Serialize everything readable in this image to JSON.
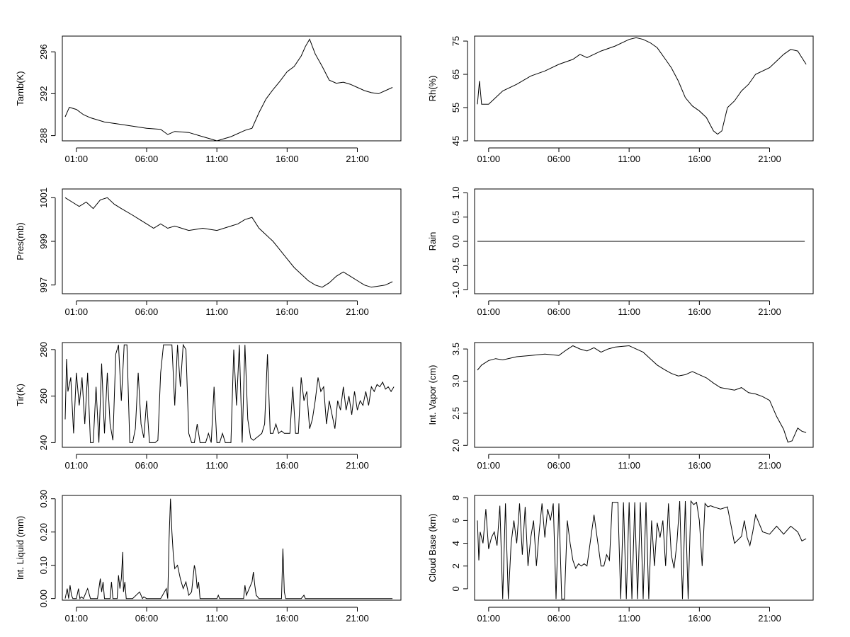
{
  "chart_data": [
    {
      "id": "tamb",
      "type": "line",
      "ylabel": "Tamb(K)",
      "xlabel": "",
      "x_ticks": [
        "01:00",
        "06:00",
        "11:00",
        "16:00",
        "21:00"
      ],
      "x_tick_hours": [
        1,
        6,
        11,
        16,
        21
      ],
      "xlim_hours": [
        0,
        24.1
      ],
      "y_ticks": [
        "288",
        "292",
        "296"
      ],
      "y_tick_values": [
        288,
        292,
        296
      ],
      "ylim": [
        287.5,
        297.5
      ],
      "x_hours": [
        0.2,
        0.5,
        1.0,
        1.5,
        2,
        3,
        4,
        5,
        6,
        7,
        7.5,
        8,
        9,
        10,
        10.5,
        11,
        12,
        13,
        13.5,
        14,
        14.5,
        15,
        15.5,
        16,
        16.5,
        17,
        17.3,
        17.6,
        18,
        18.5,
        19,
        19.5,
        20,
        20.5,
        21,
        21.5,
        22,
        22.5,
        23,
        23.5
      ],
      "values": [
        289.8,
        290.7,
        290.5,
        290.0,
        289.7,
        289.3,
        289.1,
        288.9,
        288.7,
        288.6,
        288.1,
        288.4,
        288.3,
        287.9,
        287.7,
        287.5,
        287.9,
        288.5,
        288.7,
        290.2,
        291.5,
        292.4,
        293.2,
        294.1,
        294.6,
        295.6,
        296.5,
        297.2,
        295.8,
        294.6,
        293.3,
        293.0,
        293.1,
        292.9,
        292.6,
        292.3,
        292.1,
        292.0,
        292.3,
        292.6
      ]
    },
    {
      "id": "rh",
      "type": "line",
      "ylabel": "Rh(%)",
      "xlabel": "",
      "x_ticks": [
        "01:00",
        "06:00",
        "11:00",
        "16:00",
        "21:00"
      ],
      "x_tick_hours": [
        1,
        6,
        11,
        16,
        21
      ],
      "xlim_hours": [
        0,
        24.1
      ],
      "y_ticks": [
        "45",
        "55",
        "65",
        "75"
      ],
      "y_tick_values": [
        45,
        55,
        65,
        75
      ],
      "ylim": [
        45,
        76.5
      ],
      "x_hours": [
        0.2,
        0.35,
        0.5,
        1.0,
        1.5,
        2,
        3,
        4,
        5,
        6,
        7,
        7.5,
        8,
        9,
        10,
        11,
        11.5,
        12,
        12.5,
        13,
        13.5,
        14,
        14.5,
        15,
        15.5,
        16,
        16.5,
        17,
        17.3,
        17.6,
        18,
        18.5,
        19,
        19.5,
        20,
        21,
        21.5,
        22,
        22.5,
        23,
        23.3,
        23.6
      ],
      "values": [
        56,
        63,
        56,
        56,
        58,
        60,
        62,
        64.5,
        66,
        68,
        69.5,
        71,
        70,
        72,
        73.5,
        75.5,
        76,
        75.5,
        74.5,
        73,
        70,
        67,
        63,
        58,
        55.5,
        54,
        52,
        48,
        47,
        48,
        55,
        57,
        60,
        62,
        65,
        67,
        69,
        71,
        72.5,
        72,
        70,
        68
      ]
    },
    {
      "id": "pres",
      "type": "line",
      "ylabel": "Pres(mb)",
      "xlabel": "",
      "x_ticks": [
        "01:00",
        "06:00",
        "11:00",
        "16:00",
        "21:00"
      ],
      "x_tick_hours": [
        1,
        6,
        11,
        16,
        21
      ],
      "xlim_hours": [
        0,
        24.1
      ],
      "y_ticks": [
        "997",
        "999",
        "1001"
      ],
      "y_tick_values": [
        997,
        999,
        1001
      ],
      "ylim": [
        996.6,
        1001.4
      ],
      "x_hours": [
        0.2,
        0.7,
        1.2,
        1.7,
        2.2,
        2.7,
        3.2,
        3.7,
        4.2,
        5,
        5.5,
        6,
        6.5,
        7,
        7.5,
        8,
        9,
        10,
        11,
        12,
        12.5,
        13,
        13.5,
        14,
        14.5,
        15,
        15.5,
        16,
        16.5,
        17,
        17.5,
        18,
        18.5,
        19,
        19.5,
        20,
        20.5,
        21,
        21.5,
        22,
        22.5,
        23,
        23.5
      ],
      "values": [
        1001,
        1000.8,
        1000.6,
        1000.8,
        1000.5,
        1000.9,
        1001.0,
        1000.7,
        1000.5,
        1000.2,
        1000.0,
        999.8,
        999.6,
        999.8,
        999.6,
        999.7,
        999.5,
        999.6,
        999.5,
        999.7,
        999.8,
        1000.0,
        1000.1,
        999.6,
        999.3,
        999.0,
        998.6,
        998.2,
        997.8,
        997.5,
        997.2,
        997.0,
        996.9,
        997.1,
        997.4,
        997.6,
        997.4,
        997.2,
        997.0,
        996.9,
        996.95,
        997.0,
        997.15
      ]
    },
    {
      "id": "rain",
      "type": "line",
      "ylabel": "Rain",
      "xlabel": "",
      "x_ticks": [
        "01:00",
        "06:00",
        "11:00",
        "16:00",
        "21:00"
      ],
      "x_tick_hours": [
        1,
        6,
        11,
        16,
        21
      ],
      "xlim_hours": [
        0,
        24.1
      ],
      "y_ticks": [
        "-1.0",
        "-0.5",
        "0.0",
        "0.5",
        "1.0"
      ],
      "y_tick_values": [
        -1.0,
        -0.5,
        0.0,
        0.5,
        1.0
      ],
      "ylim": [
        -1.08,
        1.08
      ],
      "x_hours": [
        0.2,
        23.5
      ],
      "values": [
        0.0,
        0.0
      ]
    },
    {
      "id": "tir",
      "type": "line",
      "ylabel": "Tir(K)",
      "xlabel": "",
      "x_ticks": [
        "01:00",
        "06:00",
        "11:00",
        "16:00",
        "21:00"
      ],
      "x_tick_hours": [
        1,
        6,
        11,
        16,
        21
      ],
      "xlim_hours": [
        0,
        24.1
      ],
      "y_ticks": [
        "240",
        "260",
        "280"
      ],
      "y_tick_values": [
        240,
        260,
        280
      ],
      "ylim": [
        238,
        283
      ],
      "x_hours": [
        0.2,
        0.3,
        0.4,
        0.6,
        0.8,
        1.0,
        1.2,
        1.4,
        1.6,
        1.8,
        2.0,
        2.2,
        2.4,
        2.6,
        2.8,
        3.0,
        3.2,
        3.4,
        3.6,
        3.8,
        4.0,
        4.2,
        4.4,
        4.6,
        4.8,
        5.0,
        5.2,
        5.4,
        5.6,
        5.8,
        6.0,
        6.2,
        6.4,
        6.6,
        6.8,
        7.0,
        7.2,
        7.4,
        7.6,
        7.8,
        8.0,
        8.2,
        8.4,
        8.6,
        8.8,
        9.0,
        9.2,
        9.4,
        9.6,
        9.8,
        10.0,
        10.2,
        10.4,
        10.6,
        10.8,
        11.0,
        11.2,
        11.4,
        11.6,
        11.8,
        12.0,
        12.2,
        12.4,
        12.6,
        12.8,
        13.0,
        13.2,
        13.4,
        13.6,
        13.8,
        14.0,
        14.2,
        14.4,
        14.6,
        14.8,
        15.0,
        15.2,
        15.4,
        15.6,
        15.8,
        16.0,
        16.2,
        16.4,
        16.6,
        16.8,
        17.0,
        17.2,
        17.4,
        17.6,
        17.8,
        18.0,
        18.2,
        18.4,
        18.6,
        18.8,
        19.0,
        19.2,
        19.4,
        19.6,
        19.8,
        20.0,
        20.2,
        20.4,
        20.6,
        20.8,
        21.0,
        21.2,
        21.4,
        21.6,
        21.8,
        22.0,
        22.2,
        22.4,
        22.6,
        22.8,
        23.0,
        23.2,
        23.4,
        23.6
      ],
      "values": [
        250,
        276,
        262,
        268,
        244,
        270,
        256,
        268,
        248,
        270,
        240,
        240,
        264,
        240,
        274,
        244,
        270,
        248,
        241,
        278,
        282,
        258,
        282,
        282,
        240,
        240,
        246,
        270,
        248,
        242,
        258,
        240,
        240,
        240,
        241,
        270,
        282,
        282,
        282,
        282,
        256,
        282,
        264,
        282,
        280,
        244,
        240,
        240,
        248,
        240,
        240,
        240,
        244,
        240,
        264,
        240,
        240,
        244,
        240,
        240,
        240,
        280,
        256,
        282,
        240,
        282,
        250,
        242,
        241,
        242,
        243,
        244,
        248,
        278,
        244,
        244,
        248,
        244,
        245,
        244,
        244,
        244,
        264,
        244,
        244,
        268,
        258,
        262,
        246,
        250,
        258,
        268,
        262,
        264,
        248,
        258,
        252,
        246,
        258,
        254,
        264,
        254,
        260,
        252,
        262,
        254,
        258,
        256,
        262,
        256,
        264,
        262,
        265,
        264,
        266,
        263,
        264,
        262,
        264
      ]
    },
    {
      "id": "vapor",
      "type": "line",
      "ylabel": "Int. Vapor (cm)",
      "xlabel": "",
      "x_ticks": [
        "01:00",
        "06:00",
        "11:00",
        "16:00",
        "21:00"
      ],
      "x_tick_hours": [
        1,
        6,
        11,
        16,
        21
      ],
      "xlim_hours": [
        0,
        24.1
      ],
      "y_ticks": [
        "2.0",
        "2.5",
        "3.0",
        "3.5"
      ],
      "y_tick_values": [
        2.0,
        2.5,
        3.0,
        3.5
      ],
      "ylim": [
        1.97,
        3.6
      ],
      "x_hours": [
        0.2,
        0.5,
        1.0,
        1.5,
        2,
        3,
        4,
        5,
        6,
        6.5,
        7,
        7.5,
        8,
        8.5,
        9,
        9.5,
        10,
        10.5,
        11,
        11.5,
        12,
        12.5,
        13,
        13.5,
        14,
        14.5,
        15,
        15.5,
        16,
        16.5,
        17,
        17.5,
        18,
        18.5,
        19,
        19.5,
        20,
        20.5,
        21,
        21.5,
        22,
        22.3,
        22.6,
        23,
        23.3,
        23.6
      ],
      "values": [
        3.17,
        3.25,
        3.32,
        3.35,
        3.33,
        3.38,
        3.4,
        3.42,
        3.4,
        3.48,
        3.55,
        3.5,
        3.47,
        3.52,
        3.45,
        3.5,
        3.53,
        3.54,
        3.55,
        3.5,
        3.45,
        3.35,
        3.25,
        3.18,
        3.12,
        3.08,
        3.1,
        3.15,
        3.1,
        3.05,
        2.97,
        2.9,
        2.88,
        2.86,
        2.9,
        2.82,
        2.8,
        2.76,
        2.7,
        2.45,
        2.25,
        2.05,
        2.07,
        2.27,
        2.22,
        2.2
      ]
    },
    {
      "id": "liquid",
      "type": "line",
      "ylabel": "Int. Liquid (mm)",
      "xlabel": "",
      "x_ticks": [
        "01:00",
        "06:00",
        "11:00",
        "16:00",
        "21:00"
      ],
      "x_tick_hours": [
        1,
        6,
        11,
        16,
        21
      ],
      "xlim_hours": [
        0,
        24.1
      ],
      "y_ticks": [
        "0.00",
        "0.10",
        "0.20",
        "0.30"
      ],
      "y_tick_values": [
        0.0,
        0.1,
        0.2,
        0.3
      ],
      "ylim": [
        -0.005,
        0.31
      ],
      "x_hours": [
        0.2,
        0.35,
        0.45,
        0.55,
        0.65,
        0.75,
        1.0,
        1.15,
        1.25,
        1.35,
        1.5,
        1.8,
        2.0,
        2.5,
        2.7,
        2.8,
        2.9,
        3.0,
        3.4,
        3.5,
        3.6,
        3.9,
        4.0,
        4.1,
        4.2,
        4.3,
        4.35,
        4.45,
        4.55,
        4.7,
        5.0,
        5.5,
        5.7,
        5.8,
        6.0,
        7.0,
        7.4,
        7.5,
        7.6,
        7.7,
        7.8,
        7.9,
        8.0,
        8.2,
        8.4,
        8.6,
        8.8,
        9.0,
        9.2,
        9.4,
        9.5,
        9.6,
        9.7,
        9.8,
        10.0,
        10.5,
        11.0,
        11.1,
        11.2,
        11.5,
        12.0,
        12.5,
        12.9,
        13.0,
        13.1,
        13.3,
        13.5,
        13.6,
        13.7,
        13.8,
        14.0,
        14.5,
        15.0,
        15.6,
        15.7,
        15.8,
        15.9,
        16.0,
        16.5,
        17.0,
        17.2,
        17.3,
        17.5,
        18,
        23.5
      ],
      "values": [
        0,
        0.03,
        0,
        0.04,
        0.01,
        0,
        0,
        0.03,
        0,
        0.005,
        0,
        0.03,
        0,
        0,
        0.06,
        0.02,
        0.05,
        0,
        0,
        0.05,
        0,
        0,
        0.07,
        0.03,
        0.06,
        0.14,
        0.02,
        0.05,
        0,
        0,
        0,
        0.02,
        0,
        0.005,
        0,
        0,
        0.03,
        0,
        0.18,
        0.3,
        0.2,
        0.13,
        0.09,
        0.1,
        0.06,
        0.03,
        0.05,
        0.01,
        0.02,
        0.1,
        0.08,
        0.03,
        0.05,
        0,
        0,
        0,
        0,
        0.01,
        0,
        0,
        0,
        0,
        0,
        0.04,
        0.01,
        0.03,
        0.05,
        0.08,
        0.04,
        0.01,
        0,
        0,
        0,
        0,
        0.15,
        0.02,
        0,
        0,
        0,
        0,
        0.01,
        0,
        0,
        0,
        0
      ]
    },
    {
      "id": "cloudbase",
      "type": "line",
      "ylabel": "Cloud Base (km)",
      "xlabel": "",
      "x_ticks": [
        "01:00",
        "06:00",
        "11:00",
        "16:00",
        "21:00"
      ],
      "x_tick_hours": [
        1,
        6,
        11,
        16,
        21
      ],
      "xlim_hours": [
        0,
        24.1
      ],
      "y_ticks": [
        "0",
        "2",
        "4",
        "6",
        "8"
      ],
      "y_tick_values": [
        0,
        2,
        4,
        6,
        8
      ],
      "ylim": [
        -1,
        8.2
      ],
      "x_hours": [
        0.2,
        0.3,
        0.4,
        0.6,
        0.8,
        1.0,
        1.2,
        1.4,
        1.6,
        1.8,
        2.0,
        2.2,
        2.4,
        2.6,
        2.8,
        3.0,
        3.2,
        3.4,
        3.6,
        3.8,
        4.0,
        4.2,
        4.4,
        4.6,
        4.8,
        5.0,
        5.2,
        5.4,
        5.6,
        5.8,
        6.0,
        6.2,
        6.4,
        6.6,
        6.8,
        7.0,
        7.2,
        7.4,
        7.6,
        7.8,
        8.0,
        8.5,
        9.0,
        9.2,
        9.4,
        9.6,
        9.8,
        10.0,
        10.2,
        10.4,
        10.6,
        10.8,
        11.0,
        11.2,
        11.4,
        11.6,
        11.8,
        12.0,
        12.2,
        12.4,
        12.6,
        12.8,
        13.0,
        13.2,
        13.4,
        13.6,
        13.8,
        14.0,
        14.2,
        14.4,
        14.6,
        14.8,
        15.0,
        15.2,
        15.4,
        15.6,
        15.8,
        16.0,
        16.2,
        16.4,
        16.6,
        16.8,
        17.0,
        17.5,
        18.0,
        18.5,
        19.0,
        19.2,
        19.4,
        19.6,
        19.8,
        20.0,
        20.5,
        21.0,
        21.5,
        22.0,
        22.5,
        23.0,
        23.3,
        23.6
      ],
      "values": [
        6,
        2.5,
        5,
        4,
        7,
        3.5,
        4.5,
        5,
        3.8,
        7.3,
        -0.9,
        7.5,
        -0.9,
        4,
        6,
        4,
        7.5,
        3,
        7.2,
        2,
        4.5,
        6,
        2,
        5,
        7.5,
        4.5,
        7,
        6,
        7.5,
        -0.9,
        7.5,
        -0.9,
        -0.9,
        6,
        4,
        2.5,
        1.8,
        2.2,
        2,
        2.2,
        2,
        6.5,
        2,
        2,
        3,
        2.5,
        7.6,
        7.6,
        7.6,
        -0.9,
        7.6,
        -0.9,
        7.6,
        -0.9,
        7.6,
        -0.9,
        7.6,
        -0.9,
        7.6,
        -0.9,
        6,
        2,
        5.8,
        4.5,
        6,
        2,
        7.5,
        3,
        1.8,
        4,
        7.7,
        -0.9,
        7.7,
        -0.9,
        7.7,
        7.4,
        7.6,
        6,
        2,
        7.5,
        7.2,
        7.3,
        7.2,
        7.0,
        7.2,
        4,
        4.6,
        6,
        4.5,
        3.8,
        5,
        6.5,
        5,
        4.8,
        5.5,
        4.8,
        5.5,
        5,
        4.2,
        4.4
      ]
    }
  ]
}
